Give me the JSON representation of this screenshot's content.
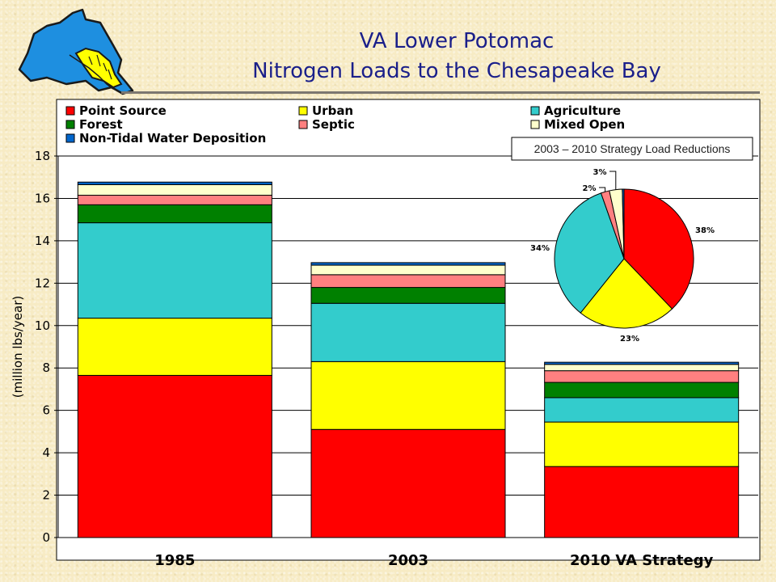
{
  "title": {
    "line1": "VA Lower Potomac",
    "line2": "Nitrogen Loads to the Chesapeake Bay"
  },
  "colors": {
    "title": "#1a1f8a",
    "Point Source": "#ff0000",
    "Urban": "#ffff00",
    "Agriculture": "#33cccc",
    "Forest": "#008000",
    "Septic": "#ff8080",
    "Mixed Open": "#ffffcc",
    "Non-Tidal Water Deposition": "#0066cc"
  },
  "chart_data": [
    {
      "type": "bar",
      "stacked": true,
      "categories": [
        "1985",
        "2003",
        "2010 VA Strategy"
      ],
      "ylabel": "(million lbs/year)",
      "ylim": [
        0,
        18
      ],
      "yticks": [
        "0",
        "2",
        "4",
        "6",
        "8",
        "10",
        "12",
        "14",
        "16",
        "18"
      ],
      "grid": true,
      "legend": [
        "Point Source",
        "Urban",
        "Agriculture",
        "Forest",
        "Septic",
        "Mixed Open",
        "Non-Tidal Water Deposition"
      ],
      "legend_position": "top",
      "series": [
        {
          "name": "Point Source",
          "values": [
            7.65,
            5.1,
            3.35
          ]
        },
        {
          "name": "Urban",
          "values": [
            2.7,
            3.2,
            2.1
          ]
        },
        {
          "name": "Agriculture",
          "values": [
            4.5,
            2.75,
            1.15
          ]
        },
        {
          "name": "Forest",
          "values": [
            0.85,
            0.75,
            0.72
          ]
        },
        {
          "name": "Septic",
          "values": [
            0.45,
            0.6,
            0.55
          ]
        },
        {
          "name": "Mixed Open",
          "values": [
            0.5,
            0.45,
            0.3
          ]
        },
        {
          "name": "Non-Tidal Water Deposition",
          "values": [
            0.12,
            0.12,
            0.1
          ]
        }
      ]
    },
    {
      "type": "pie",
      "title": "2003 – 2010 Strategy Load Reductions",
      "labels": [
        "Point Source",
        "Urban",
        "Agriculture",
        "Forest",
        "Septic",
        "Mixed Open",
        "Non-Tidal Water Deposition"
      ],
      "values": [
        38,
        23,
        34,
        0,
        2,
        3,
        0.4
      ],
      "data_labels": [
        "38%",
        "23%",
        "34%",
        "",
        "2%",
        "3%",
        ""
      ]
    }
  ]
}
